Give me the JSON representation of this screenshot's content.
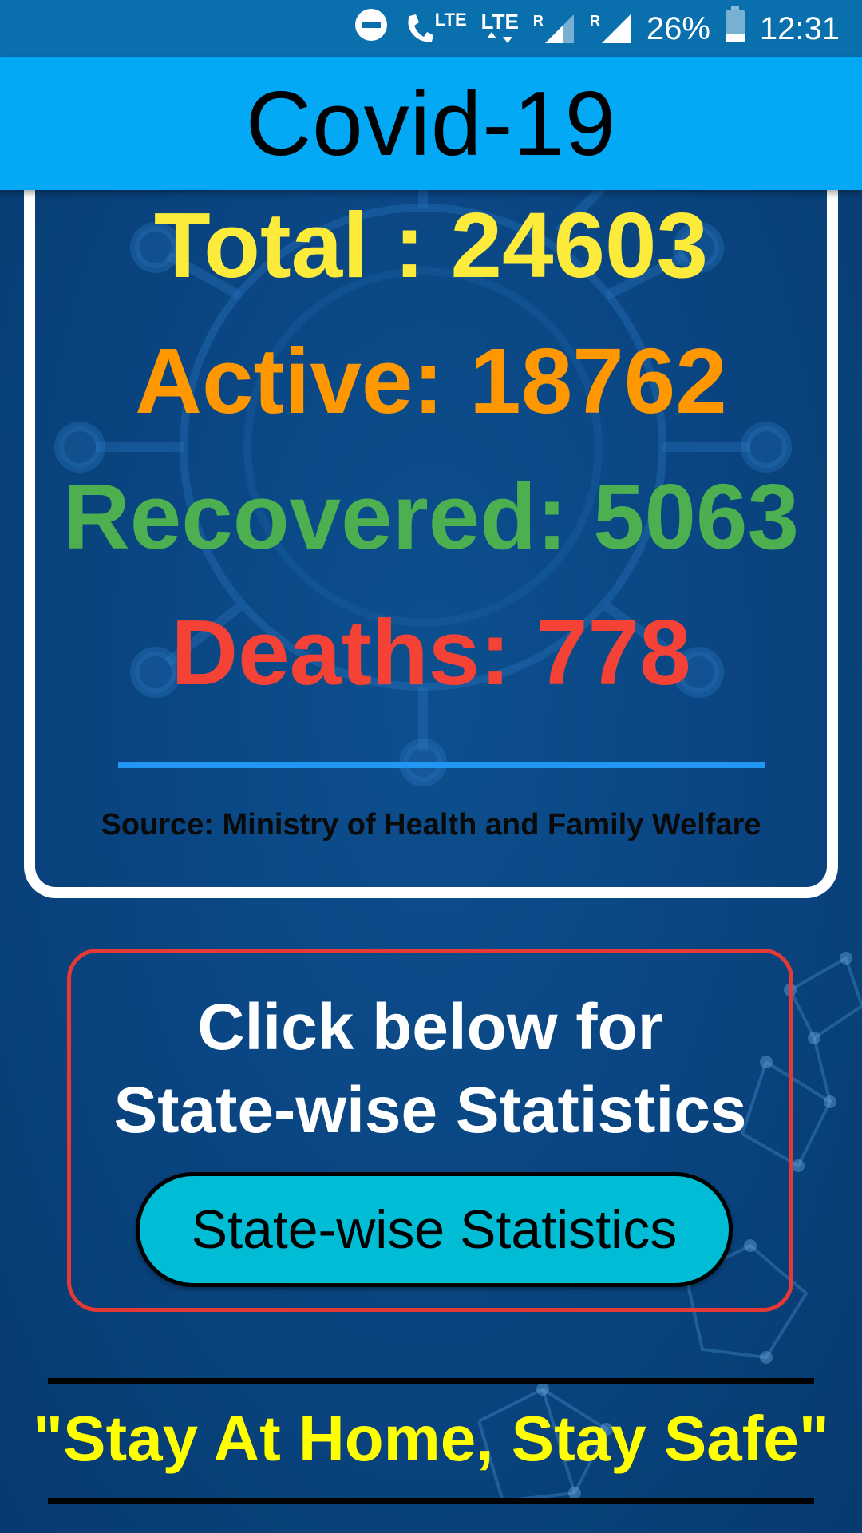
{
  "status_bar": {
    "battery": "26%",
    "time": "12:31",
    "lte_label": "LTE",
    "roaming_label": "R",
    "icons": [
      "do-not-disturb-icon",
      "volte-call-icon",
      "lte-data-icon",
      "signal-icon",
      "signal-icon",
      "battery-icon"
    ]
  },
  "app_bar": {
    "title": "Covid-19"
  },
  "stats": {
    "total": "Total : 24603",
    "active": "Active: 18762",
    "recovered": "Recovered: 5063",
    "deaths": "Deaths: 778",
    "source": "Source: Ministry of Health and Family Welfare"
  },
  "state_section": {
    "heading_line1": "Click below for",
    "heading_line2": "State-wise Statistics",
    "button_label": "State-wise Statistics"
  },
  "footer": {
    "slogan": "\"Stay At Home, Stay Safe\""
  },
  "colors": {
    "status_bar": "#0a6fad",
    "app_bar": "#03a9f4",
    "total": "#fdeb3b",
    "active": "#ff9800",
    "recovered": "#4caf50",
    "deaths": "#f44336",
    "divider": "#2196f3",
    "button": "#00bcd4",
    "state_border": "#e53935",
    "slogan": "#ffff00"
  }
}
